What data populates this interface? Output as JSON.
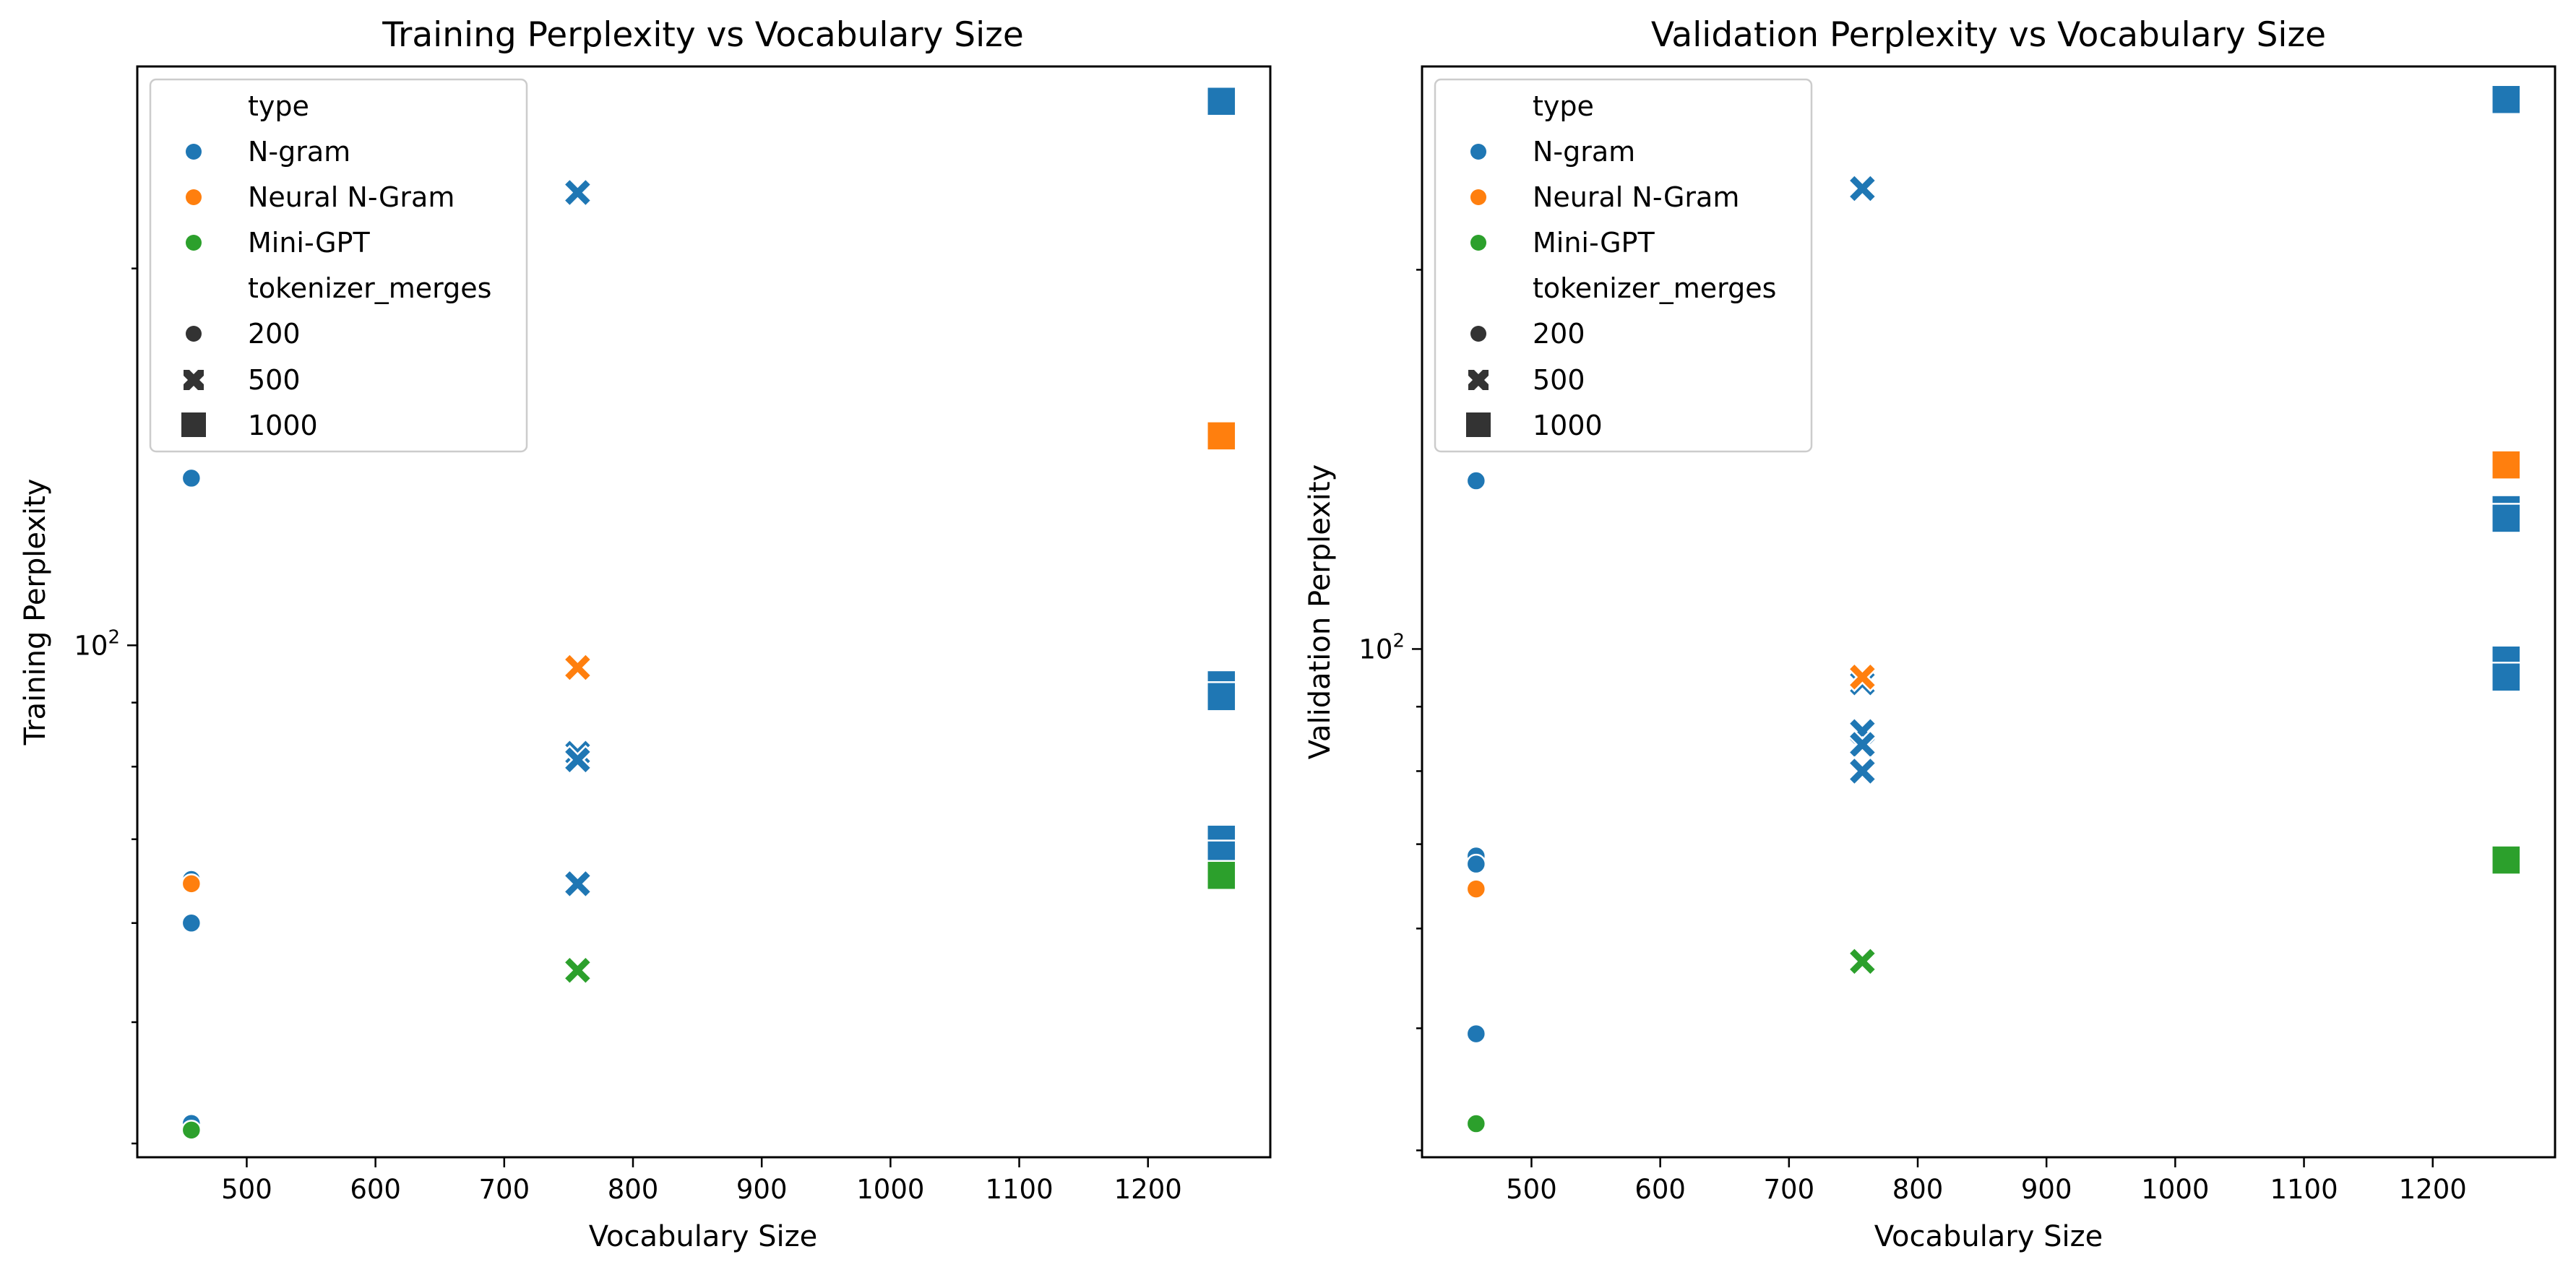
{
  "chart_data": [
    {
      "type": "scatter",
      "title": "Training Perplexity vs Vocabulary Size",
      "xlabel": "Vocabulary Size",
      "ylabel": "Training Perplexity",
      "xscale": "linear",
      "yscale": "log",
      "xlim": [
        415,
        1295
      ],
      "ylim": [
        39,
        290
      ],
      "xticks": [
        500,
        600,
        700,
        800,
        900,
        1000,
        1100,
        1200
      ],
      "ytick_major": {
        "value": 100,
        "base": "10",
        "exponent": "2"
      },
      "grid": false,
      "legend": {
        "placement": "upper-left",
        "hue_title": "type",
        "hue_entries": [
          {
            "label": "N-gram",
            "color": "#1f77b4"
          },
          {
            "label": "Neural N-Gram",
            "color": "#ff7f0e"
          },
          {
            "label": "Mini-GPT",
            "color": "#2ca02c"
          }
        ],
        "style_title": "tokenizer_merges",
        "style_entries": [
          {
            "label": "200",
            "marker": "circle"
          },
          {
            "label": "500",
            "marker": "x"
          },
          {
            "label": "1000",
            "marker": "square"
          }
        ]
      },
      "series": [
        {
          "type": "N-gram",
          "color": "#1f77b4",
          "points": [
            {
              "x": 457,
              "y": 136,
              "m": "circle"
            },
            {
              "x": 457,
              "y": 65,
              "m": "circle"
            },
            {
              "x": 457,
              "y": 60,
              "m": "circle"
            },
            {
              "x": 457,
              "y": 41.5,
              "m": "circle"
            },
            {
              "x": 757,
              "y": 230,
              "m": "x"
            },
            {
              "x": 757,
              "y": 82,
              "m": "x"
            },
            {
              "x": 757,
              "y": 81,
              "m": "x"
            },
            {
              "x": 757,
              "y": 64.5,
              "m": "x"
            },
            {
              "x": 1257,
              "y": 272,
              "m": "square"
            },
            {
              "x": 1257,
              "y": 93,
              "m": "square"
            },
            {
              "x": 1257,
              "y": 91,
              "m": "square"
            },
            {
              "x": 1257,
              "y": 70,
              "m": "square"
            },
            {
              "x": 1257,
              "y": 68,
              "m": "square"
            }
          ]
        },
        {
          "type": "Neural N-Gram",
          "color": "#ff7f0e",
          "points": [
            {
              "x": 457,
              "y": 64.5,
              "m": "circle"
            },
            {
              "x": 757,
              "y": 96,
              "m": "x"
            },
            {
              "x": 1257,
              "y": 147,
              "m": "square"
            }
          ]
        },
        {
          "type": "Mini-GPT",
          "color": "#2ca02c",
          "points": [
            {
              "x": 457,
              "y": 41,
              "m": "circle"
            },
            {
              "x": 757,
              "y": 55,
              "m": "x"
            },
            {
              "x": 1257,
              "y": 65.5,
              "m": "square"
            }
          ]
        }
      ]
    },
    {
      "type": "scatter",
      "title": "Validation Perplexity vs Vocabulary Size",
      "xlabel": "Vocabulary Size",
      "ylabel": "Validation Perplexity",
      "xscale": "linear",
      "yscale": "log",
      "xlim": [
        415,
        1295
      ],
      "ylim": [
        39.5,
        290
      ],
      "xticks": [
        500,
        600,
        700,
        800,
        900,
        1000,
        1100,
        1200
      ],
      "ytick_major": {
        "value": 100,
        "base": "10",
        "exponent": "2"
      },
      "grid": false,
      "legend": {
        "placement": "upper-left",
        "hue_title": "type",
        "hue_entries": [
          {
            "label": "N-gram",
            "color": "#1f77b4"
          },
          {
            "label": "Neural N-Gram",
            "color": "#ff7f0e"
          },
          {
            "label": "Mini-GPT",
            "color": "#2ca02c"
          }
        ],
        "style_title": "tokenizer_merges",
        "style_entries": [
          {
            "label": "200",
            "marker": "circle"
          },
          {
            "label": "500",
            "marker": "x"
          },
          {
            "label": "1000",
            "marker": "square"
          }
        ]
      },
      "series": [
        {
          "type": "N-gram",
          "color": "#1f77b4",
          "points": [
            {
              "x": 457,
              "y": 136,
              "m": "circle"
            },
            {
              "x": 457,
              "y": 68.5,
              "m": "circle"
            },
            {
              "x": 457,
              "y": 67.5,
              "m": "circle"
            },
            {
              "x": 457,
              "y": 49.5,
              "m": "circle"
            },
            {
              "x": 757,
              "y": 232,
              "m": "x"
            },
            {
              "x": 757,
              "y": 94,
              "m": "x"
            },
            {
              "x": 757,
              "y": 86,
              "m": "x"
            },
            {
              "x": 757,
              "y": 84,
              "m": "x"
            },
            {
              "x": 757,
              "y": 80,
              "m": "x"
            },
            {
              "x": 1257,
              "y": 273,
              "m": "square"
            },
            {
              "x": 1257,
              "y": 129,
              "m": "square"
            },
            {
              "x": 1257,
              "y": 127,
              "m": "square"
            },
            {
              "x": 1257,
              "y": 98,
              "m": "square"
            },
            {
              "x": 1257,
              "y": 95,
              "m": "square"
            }
          ]
        },
        {
          "type": "Neural N-Gram",
          "color": "#ff7f0e",
          "points": [
            {
              "x": 457,
              "y": 64.5,
              "m": "circle"
            },
            {
              "x": 757,
              "y": 95,
              "m": "x"
            },
            {
              "x": 1257,
              "y": 140,
              "m": "square"
            }
          ]
        },
        {
          "type": "Mini-GPT",
          "color": "#2ca02c",
          "points": [
            {
              "x": 457,
              "y": 42,
              "m": "circle"
            },
            {
              "x": 757,
              "y": 56.5,
              "m": "x"
            },
            {
              "x": 1257,
              "y": 68,
              "m": "square"
            }
          ]
        }
      ]
    }
  ]
}
